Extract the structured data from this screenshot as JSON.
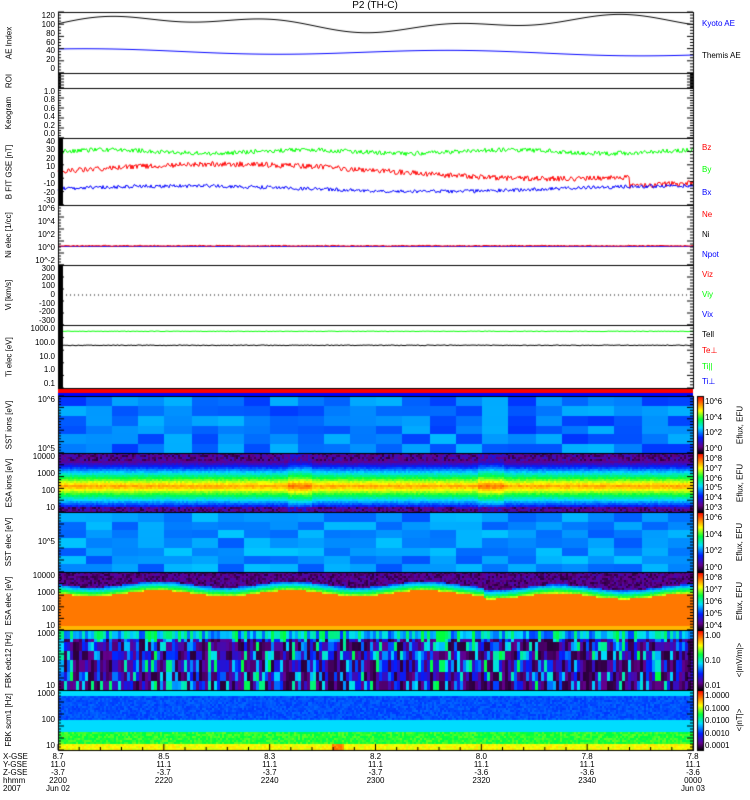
{
  "title": "P2 (TH-C)",
  "colors": {
    "black": "#000000",
    "blue": "#0000ff",
    "red": "#ff0000",
    "green": "#00ff00"
  },
  "chart_data": [
    {
      "type": "line",
      "id": "ae",
      "ylabel": "AE Index",
      "ylim": [
        0,
        120
      ],
      "yticks": [
        "120",
        "100",
        "80",
        "60",
        "40",
        "20",
        "0"
      ],
      "series": [
        {
          "name": "Kyoto AE",
          "color": "#0000ff"
        },
        {
          "name": "Themis AE",
          "color": "#000000"
        }
      ],
      "approx_ranges": {
        "black": [
          80,
          120
        ],
        "blue": [
          30,
          55
        ]
      }
    },
    {
      "type": "line",
      "id": "roi",
      "ylabel": "ROI",
      "yticks": []
    },
    {
      "type": "heatmap",
      "id": "keogram",
      "ylabel": "Keogram",
      "ylim": [
        0,
        1
      ],
      "yticks": [
        "1.0",
        "0.8",
        "0.6",
        "0.4",
        "0.2",
        "0.0"
      ]
    },
    {
      "type": "line",
      "id": "bfit",
      "ylabel": "B FIT GSE [nT]",
      "ylim": [
        -30,
        40
      ],
      "yticks": [
        "40",
        "30",
        "20",
        "10",
        "0",
        "-10",
        "-20",
        "-30"
      ],
      "series": [
        {
          "name": "Bz",
          "color": "#ff0000"
        },
        {
          "name": "By",
          "color": "#00ff00"
        },
        {
          "name": "Bx",
          "color": "#0000ff"
        }
      ]
    },
    {
      "type": "line",
      "id": "ni",
      "ylabel": "Ni elec [1/cc]",
      "yscale": "log",
      "yticks": [
        "10^6",
        "10^4",
        "10^2",
        "10^0",
        "10^-2"
      ],
      "series": [
        {
          "name": "Ne",
          "color": "#ff0000"
        },
        {
          "name": "Ni",
          "color": "#000000"
        },
        {
          "name": "Npot",
          "color": "#0000ff"
        }
      ]
    },
    {
      "type": "line",
      "id": "vi",
      "ylabel": "Vi [km/s]",
      "ylim": [
        -350,
        350
      ],
      "yticks": [
        "300",
        "200",
        "100",
        "0",
        "-100",
        "-200",
        "-300"
      ],
      "series": [
        {
          "name": "Viz",
          "color": "#ff0000"
        },
        {
          "name": "Viy",
          "color": "#00ff00"
        },
        {
          "name": "Vix",
          "color": "#0000ff"
        }
      ]
    },
    {
      "type": "line",
      "id": "ti",
      "ylabel": "Ti elec [eV]",
      "yscale": "log",
      "yticks": [
        "1000.0",
        "100.0",
        "10.0",
        "1.0",
        "0.1"
      ],
      "series": [
        {
          "name": "Tell",
          "color": "#000000"
        },
        {
          "name": "Te⊥",
          "color": "#ff0000"
        },
        {
          "name": "Ti||",
          "color": "#00ff00"
        },
        {
          "name": "Ti⊥",
          "color": "#0000ff"
        }
      ]
    },
    {
      "type": "heatmap",
      "id": "sst_i",
      "ylabel": "SST ions [eV]",
      "yticks": [
        "10^6",
        "10^5"
      ],
      "cbar_label": "Eflux, EFU",
      "cbar_ticks": [
        "10^6",
        "10^4",
        "10^2",
        "10^0"
      ]
    },
    {
      "type": "heatmap",
      "id": "esa_i",
      "ylabel": "ESA ions [eV]",
      "yticks": [
        "10000",
        "1000",
        "100",
        "10"
      ],
      "cbar_label": "Eflux, EFU",
      "cbar_ticks": [
        "10^8",
        "10^7",
        "10^6",
        "10^5",
        "10^4",
        "10^3"
      ]
    },
    {
      "type": "heatmap",
      "id": "sst_e",
      "ylabel": "SST elec [eV]",
      "yticks": [
        "10^5"
      ],
      "cbar_label": "Eflux, EFU",
      "cbar_ticks": [
        "10^6",
        "10^4",
        "10^2",
        "10^0"
      ]
    },
    {
      "type": "heatmap",
      "id": "esa_e",
      "ylabel": "ESA elec [eV]",
      "yticks": [
        "10000",
        "1000",
        "100",
        "10"
      ],
      "cbar_label": "Eflux, EFU",
      "cbar_ticks": [
        "10^8",
        "10^7",
        "10^6",
        "10^5",
        "10^4"
      ]
    },
    {
      "type": "heatmap",
      "id": "fbk_e",
      "ylabel": "FBK edc12 [Hz]",
      "yticks": [
        "1000",
        "100",
        "10"
      ],
      "cbar_label": "<|mV/m|>",
      "cbar_ticks": [
        "1.00",
        "0.10",
        "0.01"
      ]
    },
    {
      "type": "heatmap",
      "id": "fbk_b",
      "ylabel": "FBK scm1 [Hz]",
      "yticks": [
        "1000",
        "100",
        "10"
      ],
      "cbar_label": "<|nT|>",
      "cbar_ticks": [
        "1.0000",
        "0.1000",
        "0.0100",
        "0.0010",
        "0.0001"
      ]
    }
  ],
  "xaxis": {
    "row_labels": [
      "X-GSE",
      "Y-GSE",
      "Z-GSE",
      "hhmm",
      "2007"
    ],
    "ticks": [
      {
        "x": "8.7",
        "y": "11.0",
        "z": "-3.7",
        "t": "2200",
        "d": "Jun 02"
      },
      {
        "x": "8.5",
        "y": "11.1",
        "z": "-3.7",
        "t": "2220",
        "d": ""
      },
      {
        "x": "8.3",
        "y": "11.1",
        "z": "-3.7",
        "t": "2240",
        "d": ""
      },
      {
        "x": "8.2",
        "y": "11.1",
        "z": "-3.7",
        "t": "2300",
        "d": ""
      },
      {
        "x": "8.0",
        "y": "11.1",
        "z": "-3.6",
        "t": "2320",
        "d": ""
      },
      {
        "x": "7.8",
        "y": "11.1",
        "z": "-3.6",
        "t": "2340",
        "d": ""
      },
      {
        "x": "7.8",
        "y": "11.1",
        "z": "-3.6",
        "t": "0000",
        "d": "Jun 03"
      }
    ]
  }
}
